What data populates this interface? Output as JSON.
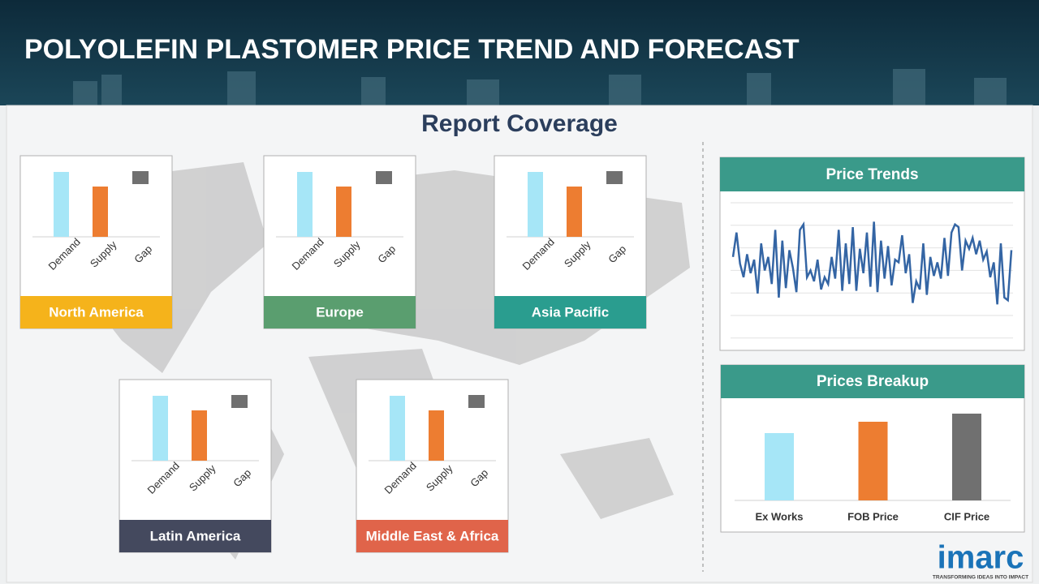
{
  "title": "POLYOLEFIN PLASTOMER PRICE TREND AND FORECAST",
  "subtitle": "Report Coverage",
  "region_series": [
    {
      "name": "Demand",
      "color": "#a6e6f7"
    },
    {
      "name": "Supply",
      "color": "#ed7d31"
    },
    {
      "name": "Gap",
      "color": "#707070"
    }
  ],
  "regions": [
    {
      "label": "North America",
      "color": "#f5b31b",
      "categories": [
        "Demand",
        "Supply",
        "Gap"
      ],
      "values": [
        80,
        62,
        null
      ]
    },
    {
      "label": "Europe",
      "color": "#5a9e6f",
      "categories": [
        "Demand",
        "Supply",
        "Gap"
      ],
      "values": [
        80,
        62,
        null
      ]
    },
    {
      "label": "Asia Pacific",
      "color": "#2a9d8f",
      "categories": [
        "Demand",
        "Supply",
        "Gap"
      ],
      "values": [
        80,
        62,
        null
      ]
    },
    {
      "label": "Latin America",
      "color": "#44495e",
      "categories": [
        "Demand",
        "Supply",
        "Gap"
      ],
      "values": [
        80,
        62,
        null
      ]
    },
    {
      "label": "Middle East & Africa",
      "color": "#e0644a",
      "categories": [
        "Demand",
        "Supply",
        "Gap"
      ],
      "values": [
        80,
        62,
        null
      ]
    }
  ],
  "price_trends": {
    "title": "Price Trends",
    "color": "#3465a4",
    "values": [
      60,
      78,
      55,
      45,
      62,
      48,
      58,
      33,
      70,
      50,
      60,
      40,
      80,
      30,
      72,
      37,
      65,
      52,
      34,
      80,
      84,
      45,
      50,
      42,
      58,
      36,
      45,
      40,
      60,
      44,
      80,
      35,
      70,
      40,
      82,
      35,
      66,
      48,
      78,
      38,
      86,
      34,
      72,
      44,
      68,
      39,
      58,
      56,
      76,
      48,
      62,
      26,
      42,
      36,
      70,
      32,
      60,
      46,
      56,
      44,
      74,
      46,
      78,
      84,
      82,
      50,
      72,
      66,
      74,
      62,
      72,
      58,
      64,
      45,
      56,
      25,
      70,
      30,
      28,
      65
    ]
  },
  "prices_breakup": {
    "title": "Prices Breakup",
    "categories": [
      "Ex Works",
      "FOB Price",
      "CIF Price"
    ],
    "values": [
      83,
      97,
      107
    ],
    "colors": [
      "#a6e6f7",
      "#ed7d31",
      "#707070"
    ]
  },
  "logo": {
    "name": "imarc",
    "tagline": "TRANSFORMING IDEAS INTO IMPACT"
  }
}
